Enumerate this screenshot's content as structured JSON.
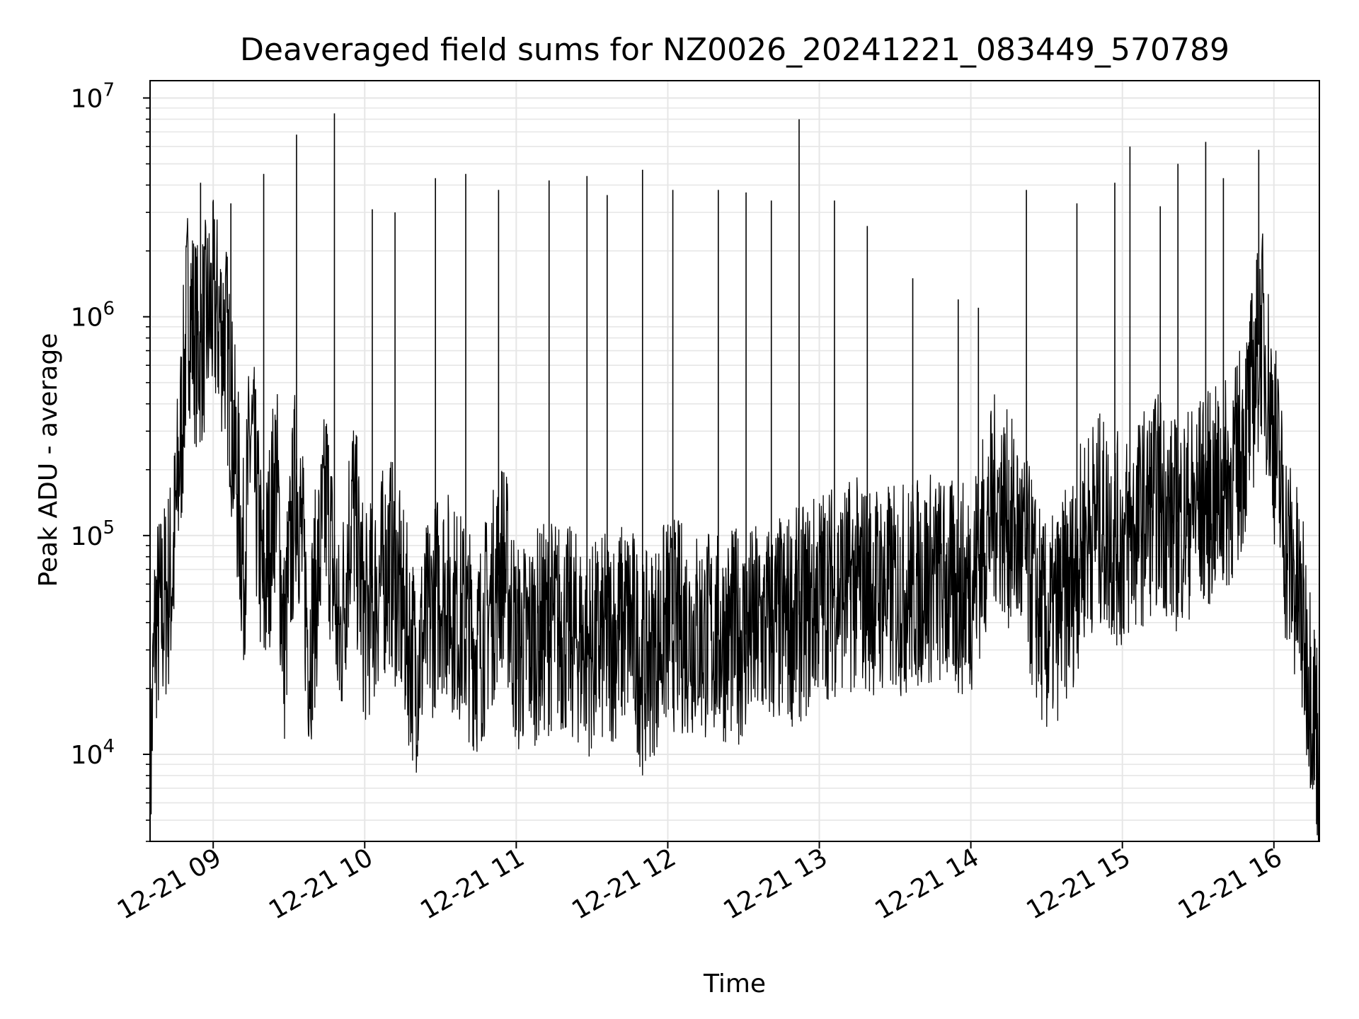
{
  "chart_data": {
    "type": "line",
    "title": "Deaveraged field sums for NZ0026_20241221_083449_570789",
    "xlabel": "Time",
    "ylabel": "Peak ADU - average",
    "y_scale": "log",
    "ylim": [
      4000,
      12000000
    ],
    "xlim": [
      "2024-12-21 08:35",
      "2024-12-21 16:18"
    ],
    "grid": true,
    "line_color": "#000000",
    "grid_color": "#e6e6e6",
    "x_ticks": [
      {
        "label": "12-21 09",
        "value": "2024-12-21 09:00"
      },
      {
        "label": "12-21 10",
        "value": "2024-12-21 10:00"
      },
      {
        "label": "12-21 11",
        "value": "2024-12-21 11:00"
      },
      {
        "label": "12-21 12",
        "value": "2024-12-21 12:00"
      },
      {
        "label": "12-21 13",
        "value": "2024-12-21 13:00"
      },
      {
        "label": "12-21 14",
        "value": "2024-12-21 14:00"
      },
      {
        "label": "12-21 15",
        "value": "2024-12-21 15:00"
      },
      {
        "label": "12-21 16",
        "value": "2024-12-21 16:00"
      }
    ],
    "y_ticks": [
      {
        "base": "10",
        "exp": "4",
        "value": 10000
      },
      {
        "base": "10",
        "exp": "5",
        "value": 100000
      },
      {
        "base": "10",
        "exp": "6",
        "value": 1000000
      },
      {
        "base": "10",
        "exp": "7",
        "value": 10000000
      }
    ],
    "series": [
      {
        "x": [
          "2024-12-21 08:35",
          "2024-12-21 08:37",
          "2024-12-21 08:40",
          "2024-12-21 08:44",
          "2024-12-21 08:48",
          "2024-12-21 08:50",
          "2024-12-21 08:52",
          "2024-12-21 08:54",
          "2024-12-21 08:57",
          "2024-12-21 09:00",
          "2024-12-21 09:05",
          "2024-12-21 09:10",
          "2024-12-21 09:12",
          "2024-12-21 09:15",
          "2024-12-21 09:20",
          "2024-12-21 09:25",
          "2024-12-21 09:28",
          "2024-12-21 09:33",
          "2024-12-21 09:38",
          "2024-12-21 09:45",
          "2024-12-21 09:50",
          "2024-12-21 09:55",
          "2024-12-21 10:00",
          "2024-12-21 10:10",
          "2024-12-21 10:20",
          "2024-12-21 10:30",
          "2024-12-21 10:45",
          "2024-12-21 10:55",
          "2024-12-21 11:00",
          "2024-12-21 11:15",
          "2024-12-21 11:30",
          "2024-12-21 11:45",
          "2024-12-21 11:50",
          "2024-12-21 12:00",
          "2024-12-21 12:15",
          "2024-12-21 12:30",
          "2024-12-21 12:45",
          "2024-12-21 12:55",
          "2024-12-21 13:00",
          "2024-12-21 13:15",
          "2024-12-21 13:30",
          "2024-12-21 13:45",
          "2024-12-21 13:55",
          "2024-12-21 14:00",
          "2024-12-21 14:10",
          "2024-12-21 14:20",
          "2024-12-21 14:30",
          "2024-12-21 14:40",
          "2024-12-21 14:45",
          "2024-12-21 14:50",
          "2024-12-21 15:00",
          "2024-12-21 15:10",
          "2024-12-21 15:15",
          "2024-12-21 15:20",
          "2024-12-21 15:30",
          "2024-12-21 15:40",
          "2024-12-21 15:45",
          "2024-12-21 15:50",
          "2024-12-21 15:55",
          "2024-12-21 16:00",
          "2024-12-21 16:05",
          "2024-12-21 16:10",
          "2024-12-21 16:15",
          "2024-12-21 16:18"
        ],
        "y": [
          7000,
          40000,
          45000,
          70000,
          400000,
          1200000,
          900000,
          700000,
          900000,
          1100000,
          800000,
          150000,
          70000,
          300000,
          50000,
          200000,
          30000,
          200000,
          30000,
          150000,
          30000,
          150000,
          40000,
          80000,
          25000,
          60000,
          30000,
          80000,
          30000,
          40000,
          30000,
          40000,
          25000,
          40000,
          35000,
          35000,
          40000,
          45000,
          55000,
          60000,
          55000,
          65000,
          55000,
          60000,
          150000,
          90000,
          35000,
          60000,
          100000,
          120000,
          90000,
          130000,
          150000,
          110000,
          140000,
          160000,
          200000,
          350000,
          900000,
          300000,
          90000,
          50000,
          20000,
          10000
        ]
      },
      {
        "x": [
          "2024-12-21 08:55",
          "2024-12-21 09:07",
          "2024-12-21 09:20",
          "2024-12-21 09:33",
          "2024-12-21 09:48",
          "2024-12-21 10:03",
          "2024-12-21 10:12",
          "2024-12-21 10:28",
          "2024-12-21 10:40",
          "2024-12-21 10:53",
          "2024-12-21 11:13",
          "2024-12-21 11:28",
          "2024-12-21 11:36",
          "2024-12-21 11:50",
          "2024-12-21 12:02",
          "2024-12-21 12:20",
          "2024-12-21 12:31",
          "2024-12-21 12:41",
          "2024-12-21 12:52",
          "2024-12-21 13:06",
          "2024-12-21 13:19",
          "2024-12-21 13:37",
          "2024-12-21 13:55",
          "2024-12-21 14:03",
          "2024-12-21 14:22",
          "2024-12-21 14:42",
          "2024-12-21 14:57",
          "2024-12-21 15:03",
          "2024-12-21 15:15",
          "2024-12-21 15:22",
          "2024-12-21 15:33",
          "2024-12-21 15:40",
          "2024-12-21 15:54"
        ],
        "y": [
          4100000,
          3300000,
          4500000,
          6800000,
          8500000,
          3100000,
          3000000,
          4300000,
          4500000,
          3800000,
          4200000,
          4400000,
          3600000,
          4700000,
          3800000,
          3800000,
          3700000,
          3400000,
          8000000,
          3400000,
          2600000,
          1500000,
          1200000,
          1100000,
          3800000,
          3300000,
          4100000,
          6000000,
          3200000,
          5000000,
          6300000,
          4300000,
          5800000
        ]
      }
    ]
  }
}
